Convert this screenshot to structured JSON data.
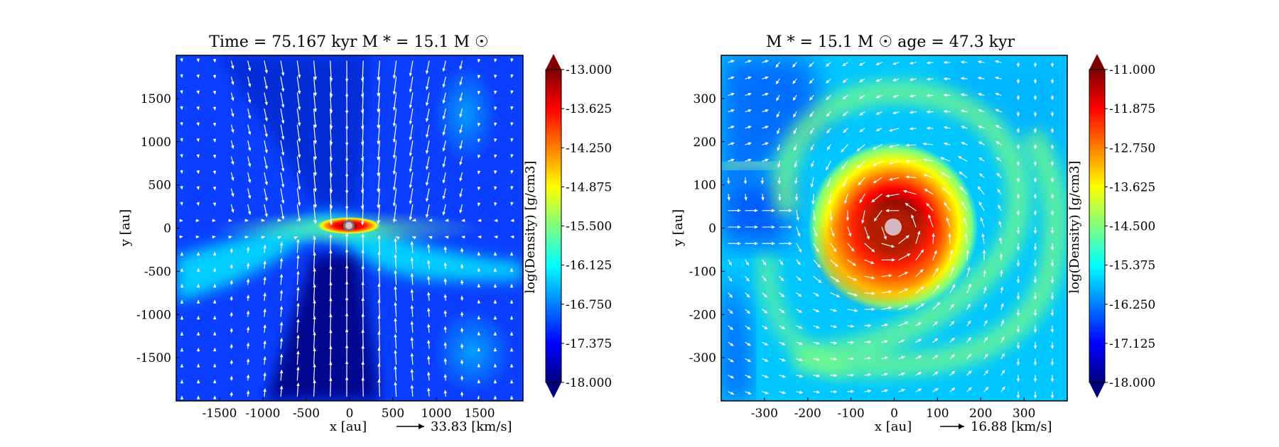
{
  "chart_data": [
    {
      "type": "heatmap",
      "title": "Time = 75.167 kyr    M * = 15.1 M ☉",
      "xlabel": "x [au]",
      "ylabel": "y [au]",
      "xlim": [
        -2000,
        2000
      ],
      "ylim": [
        -2000,
        2000
      ],
      "xticks": [
        -1500,
        -1000,
        -500,
        0,
        500,
        1000,
        1500
      ],
      "yticks": [
        -1500,
        -1000,
        -500,
        0,
        500,
        1000,
        1500
      ],
      "colorbar": {
        "label": "log(Density) [g/cm3]",
        "range": [
          -18.0,
          -13.0
        ],
        "ticks": [
          "-13.000",
          "-13.625",
          "-14.250",
          "-14.875",
          "-15.500",
          "-16.125",
          "-16.750",
          "-17.375",
          "-18.000"
        ]
      },
      "arrow_key": {
        "label": "33.83 [km/s]"
      },
      "grid": false
    },
    {
      "type": "heatmap",
      "title": "M * = 15.1 M ☉          age = 47.3 kyr",
      "xlabel": "x [au]",
      "ylabel": "y [au]",
      "xlim": [
        -400,
        400
      ],
      "ylim": [
        -400,
        400
      ],
      "xticks": [
        -300,
        -200,
        -100,
        0,
        100,
        200,
        300
      ],
      "yticks": [
        -300,
        -200,
        -100,
        0,
        100,
        200,
        300
      ],
      "colorbar": {
        "label": "log(Density) [g/cm3]",
        "range": [
          -18.0,
          -11.0
        ],
        "ticks": [
          "-11.000",
          "-11.875",
          "-12.750",
          "-13.625",
          "-14.500",
          "-15.375",
          "-16.250",
          "-17.125",
          "-18.000"
        ]
      },
      "arrow_key": {
        "label": "16.88 [km/s]"
      },
      "grid": false
    }
  ],
  "colors": {
    "jet": [
      "#00007f",
      "#0000ff",
      "#007fff",
      "#00ffff",
      "#7fff7f",
      "#ffff00",
      "#ff7f00",
      "#ff0000",
      "#7f0000"
    ],
    "arrow": "#ffffff",
    "star": "#d7b8bf"
  }
}
